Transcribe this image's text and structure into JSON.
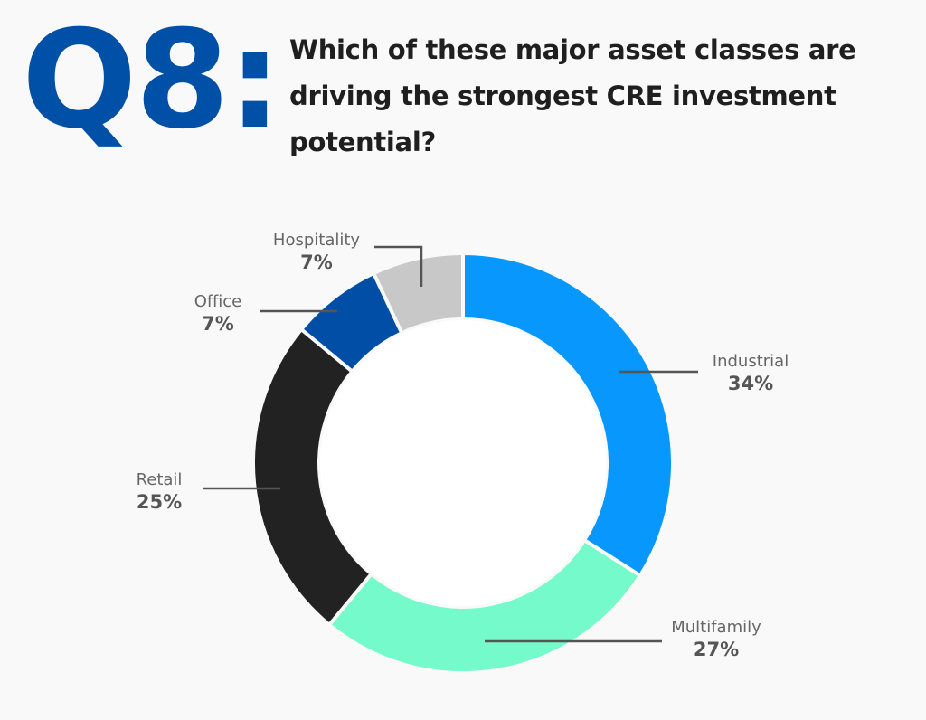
{
  "header": {
    "question_number": "Q8:",
    "question_text": "Which of these major asset classes are driving the strongest CRE investment potential?"
  },
  "colors": {
    "question_number": "#0050a8",
    "title_text": "#1f1f1f",
    "background": "#f9f9f9"
  },
  "chart_data": {
    "type": "pie",
    "variant": "donut",
    "title": "Which of these major asset classes are driving the strongest CRE investment potential?",
    "categories": [
      "Industrial",
      "Multifamily",
      "Retail",
      "Office",
      "Hospitality"
    ],
    "values": [
      34,
      27,
      25,
      7,
      7
    ],
    "unit": "%",
    "colors": [
      "#0797fd",
      "#75fbcb",
      "#222222",
      "#004ea6",
      "#c8c8c8"
    ],
    "start_angle": "top, clockwise",
    "legend": "leader-line labels"
  },
  "labels": [
    {
      "name": "Industrial",
      "pct": "34%"
    },
    {
      "name": "Multifamily",
      "pct": "27%"
    },
    {
      "name": "Retail",
      "pct": "25%"
    },
    {
      "name": "Office",
      "pct": "7%"
    },
    {
      "name": "Hospitality",
      "pct": "7%"
    }
  ]
}
